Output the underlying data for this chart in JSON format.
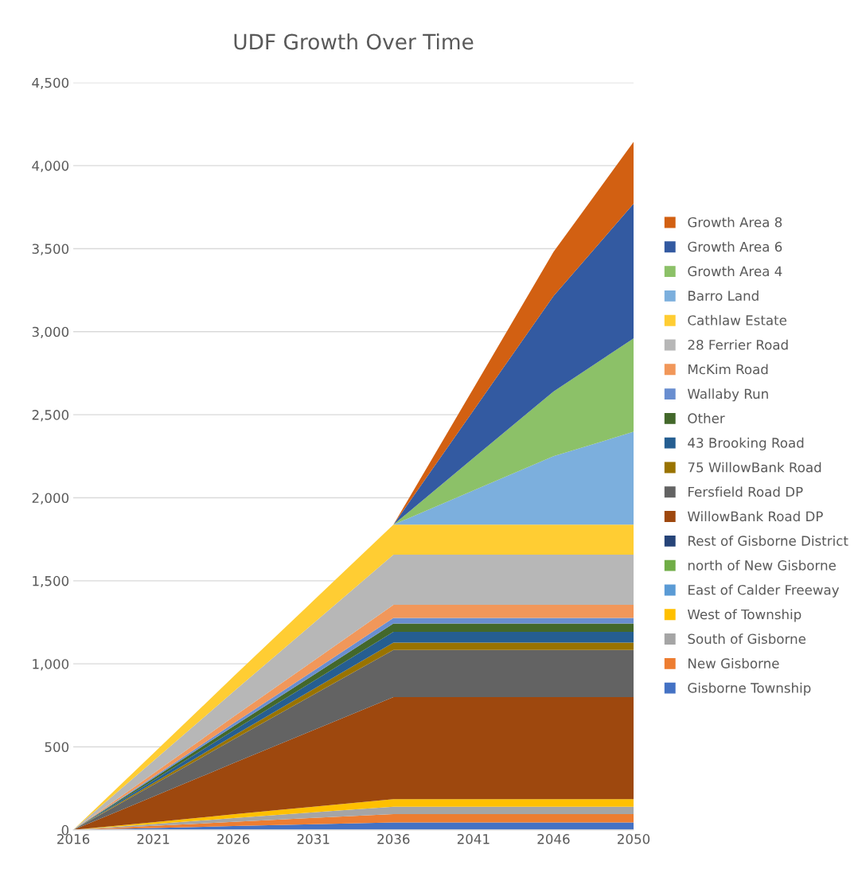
{
  "chart_data": {
    "type": "area",
    "stacked": true,
    "title": "UDF Growth Over Time",
    "categories": [
      "2016",
      "2021",
      "2026",
      "2031",
      "2036",
      "2041",
      "2046",
      "2050"
    ],
    "series": [
      {
        "name": "Gisborne Township",
        "color": "#4472c4",
        "values": [
          0,
          11,
          23,
          34,
          45,
          45,
          45,
          45
        ]
      },
      {
        "name": "New Gisborne",
        "color": "#ed7d31",
        "values": [
          0,
          13,
          25,
          38,
          50,
          50,
          50,
          50
        ]
      },
      {
        "name": "South of Gisborne",
        "color": "#a5a5a5",
        "values": [
          0,
          11,
          23,
          34,
          45,
          45,
          45,
          45
        ]
      },
      {
        "name": "West of Township",
        "color": "#ffc000",
        "values": [
          0,
          11,
          23,
          34,
          45,
          45,
          45,
          45
        ]
      },
      {
        "name": "East of Calder Freeway",
        "color": "#5b9bd5",
        "values": [
          null,
          null,
          null,
          null,
          null,
          null,
          null,
          null
        ]
      },
      {
        "name": "north of New Gisborne",
        "color": "#70ad47",
        "values": [
          null,
          null,
          null,
          null,
          null,
          null,
          null,
          null
        ]
      },
      {
        "name": "Rest of Gisborne District",
        "color": "#264478",
        "values": [
          null,
          null,
          null,
          null,
          null,
          null,
          null,
          null
        ]
      },
      {
        "name": "WillowBank Road DP",
        "color": "#9e480e",
        "values": [
          0,
          154,
          308,
          461,
          615,
          615,
          615,
          615
        ]
      },
      {
        "name": "Fersfield Road DP",
        "color": "#636363",
        "values": [
          0,
          71,
          142,
          213,
          284,
          284,
          284,
          284
        ]
      },
      {
        "name": "75 WillowBank Road",
        "color": "#997300",
        "values": [
          0,
          11,
          22,
          33,
          44,
          44,
          44,
          44
        ]
      },
      {
        "name": "43 Brooking Road",
        "color": "#255e91",
        "values": [
          0,
          16,
          32,
          48,
          64,
          64,
          64,
          64
        ]
      },
      {
        "name": "Other",
        "color": "#43682b",
        "values": [
          0,
          13,
          26,
          38,
          51,
          51,
          51,
          51
        ]
      },
      {
        "name": "Wallaby Run",
        "color": "#698ed0",
        "values": [
          0,
          8,
          17,
          25,
          33,
          33,
          33,
          33
        ]
      },
      {
        "name": "McKim Road",
        "color": "#f1975a",
        "values": [
          0,
          20,
          40,
          59,
          79,
          79,
          79,
          79
        ]
      },
      {
        "name": "28 Ferrier Road",
        "color": "#b7b7b7",
        "values": [
          0,
          76,
          151,
          227,
          302,
          302,
          302,
          302
        ]
      },
      {
        "name": "Cathlaw Estate",
        "color": "#ffcd33",
        "values": [
          0,
          45,
          91,
          136,
          181,
          181,
          181,
          181
        ]
      },
      {
        "name": "Barro Land",
        "color": "#7cafdd",
        "values": [
          0,
          0,
          0,
          0,
          0,
          206,
          412,
          559
        ]
      },
      {
        "name": "Growth Area 4",
        "color": "#8cc168",
        "values": [
          0,
          0,
          0,
          0,
          0,
          195,
          390,
          563
        ]
      },
      {
        "name": "Growth Area 6",
        "color": "#335aa1",
        "values": [
          0,
          0,
          0,
          0,
          0,
          287,
          574,
          810
        ]
      },
      {
        "name": "Growth Area 8",
        "color": "#d26012",
        "values": [
          0,
          0,
          0,
          0,
          0,
          133,
          266,
          373
        ]
      }
    ],
    "ylim": [
      0,
      4500
    ],
    "yticks": [
      {
        "value": 0,
        "label": "0"
      },
      {
        "value": 500,
        "label": "500"
      },
      {
        "value": 1000,
        "label": "1,000"
      },
      {
        "value": 1500,
        "label": "1,500"
      },
      {
        "value": 2000,
        "label": "2,000"
      },
      {
        "value": 2500,
        "label": "2,500"
      },
      {
        "value": 3000,
        "label": "3,000"
      },
      {
        "value": 3500,
        "label": "3,500"
      },
      {
        "value": 4000,
        "label": "4,000"
      },
      {
        "value": 4500,
        "label": "4,500"
      }
    ],
    "grid": "y",
    "legend": "right"
  }
}
